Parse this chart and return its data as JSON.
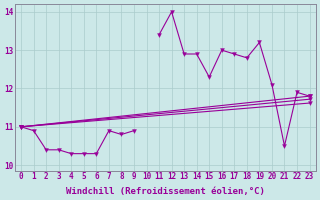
{
  "xlabel": "Windchill (Refroidissement éolien,°C)",
  "bg_color": "#cce8e8",
  "line_color": "#990099",
  "grid_color": "#aacccc",
  "axis_color": "#888899",
  "x_values": [
    0,
    1,
    2,
    3,
    4,
    5,
    6,
    7,
    8,
    9,
    10,
    11,
    12,
    13,
    14,
    15,
    16,
    17,
    18,
    19,
    20,
    21,
    22,
    23
  ],
  "series_main": [
    11.0,
    10.9,
    10.4,
    10.4,
    10.3,
    10.3,
    10.3,
    10.9,
    10.8,
    10.9,
    null,
    13.4,
    14.0,
    12.9,
    12.9,
    12.3,
    13.0,
    12.9,
    12.8,
    13.2,
    12.1,
    10.5,
    11.9,
    11.8
  ],
  "trend_lines": [
    {
      "x0": 0,
      "y0": 11.0,
      "x1": 23,
      "y1": 11.8
    },
    {
      "x0": 0,
      "y0": 11.0,
      "x1": 23,
      "y1": 11.72
    },
    {
      "x0": 0,
      "y0": 11.0,
      "x1": 23,
      "y1": 11.62
    }
  ],
  "ylim": [
    9.85,
    14.2
  ],
  "xlim": [
    -0.5,
    23.5
  ],
  "xticks": [
    0,
    1,
    2,
    3,
    4,
    5,
    6,
    7,
    8,
    9,
    10,
    11,
    12,
    13,
    14,
    15,
    16,
    17,
    18,
    19,
    20,
    21,
    22,
    23
  ],
  "yticks": [
    10,
    11,
    12,
    13,
    14
  ],
  "tick_fontsize": 5.5,
  "xlabel_fontsize": 6.5
}
